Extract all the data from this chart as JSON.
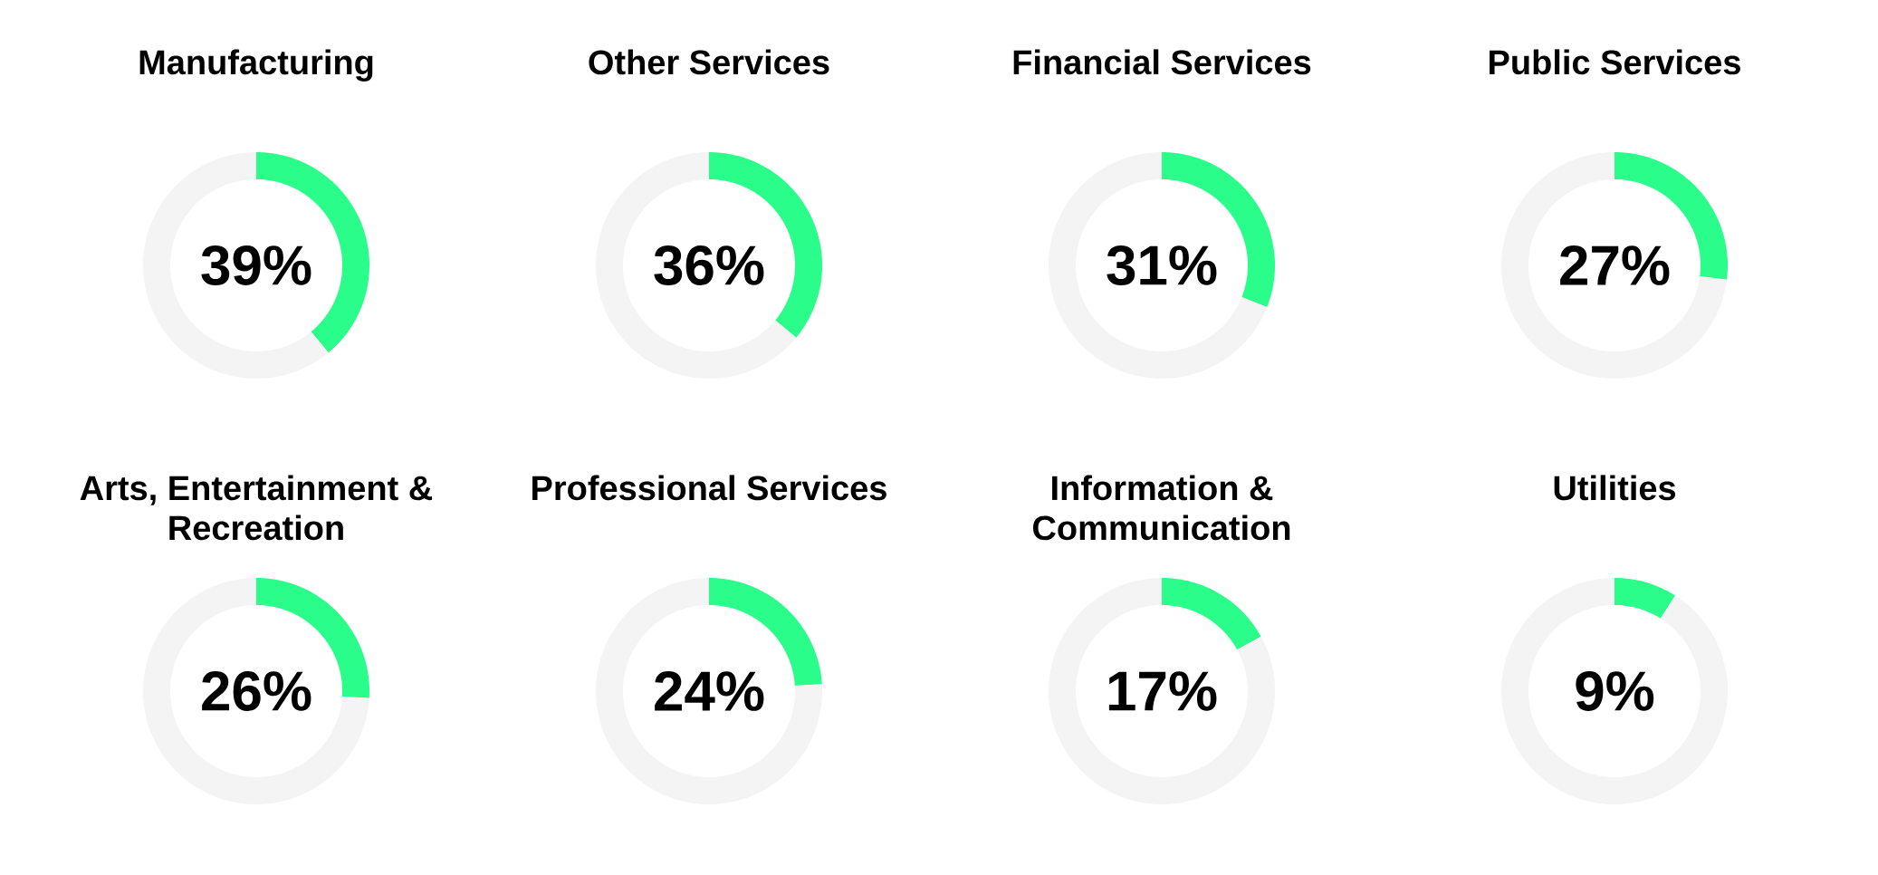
{
  "chart_data": [
    {
      "type": "donut",
      "title": "Manufacturing",
      "categories": [
        null,
        null
      ],
      "values": [
        39,
        61
      ],
      "colors": [
        "#2afd8a",
        "#f4f4f4"
      ],
      "annotations": [
        "39%"
      ]
    },
    {
      "type": "donut",
      "title": "Other Services",
      "categories": [
        null,
        null
      ],
      "values": [
        36,
        64
      ],
      "colors": [
        "#2afd8a",
        "#f4f4f4"
      ],
      "annotations": [
        "36%"
      ]
    },
    {
      "type": "donut",
      "title": "Financial Services",
      "categories": [
        null,
        null
      ],
      "values": [
        31,
        69
      ],
      "colors": [
        "#2afd8a",
        "#f4f4f4"
      ],
      "annotations": [
        "31%"
      ]
    },
    {
      "type": "donut",
      "title": "Public Services",
      "categories": [
        null,
        null
      ],
      "values": [
        27,
        73
      ],
      "colors": [
        "#2afd8a",
        "#f4f4f4"
      ],
      "annotations": [
        "27%"
      ]
    },
    {
      "type": "donut",
      "title": "Arts, Entertainment & Recreation",
      "categories": [
        null,
        null
      ],
      "values": [
        26,
        74
      ],
      "colors": [
        "#2afd8a",
        "#f4f4f4"
      ],
      "annotations": [
        "26%"
      ]
    },
    {
      "type": "donut",
      "title": "Professional Services",
      "categories": [
        null,
        null
      ],
      "values": [
        24,
        76
      ],
      "colors": [
        "#2afd8a",
        "#f4f4f4"
      ],
      "annotations": [
        "24%"
      ]
    },
    {
      "type": "donut",
      "title": "Information & Communication",
      "categories": [
        null,
        null
      ],
      "values": [
        17,
        83
      ],
      "colors": [
        "#2afd8a",
        "#f4f4f4"
      ],
      "annotations": [
        "17%"
      ]
    },
    {
      "type": "donut",
      "title": "Utilities",
      "categories": [
        null,
        null
      ],
      "values": [
        9,
        91
      ],
      "colors": [
        "#2afd8a",
        "#f4f4f4"
      ],
      "annotations": [
        "9%"
      ]
    }
  ]
}
